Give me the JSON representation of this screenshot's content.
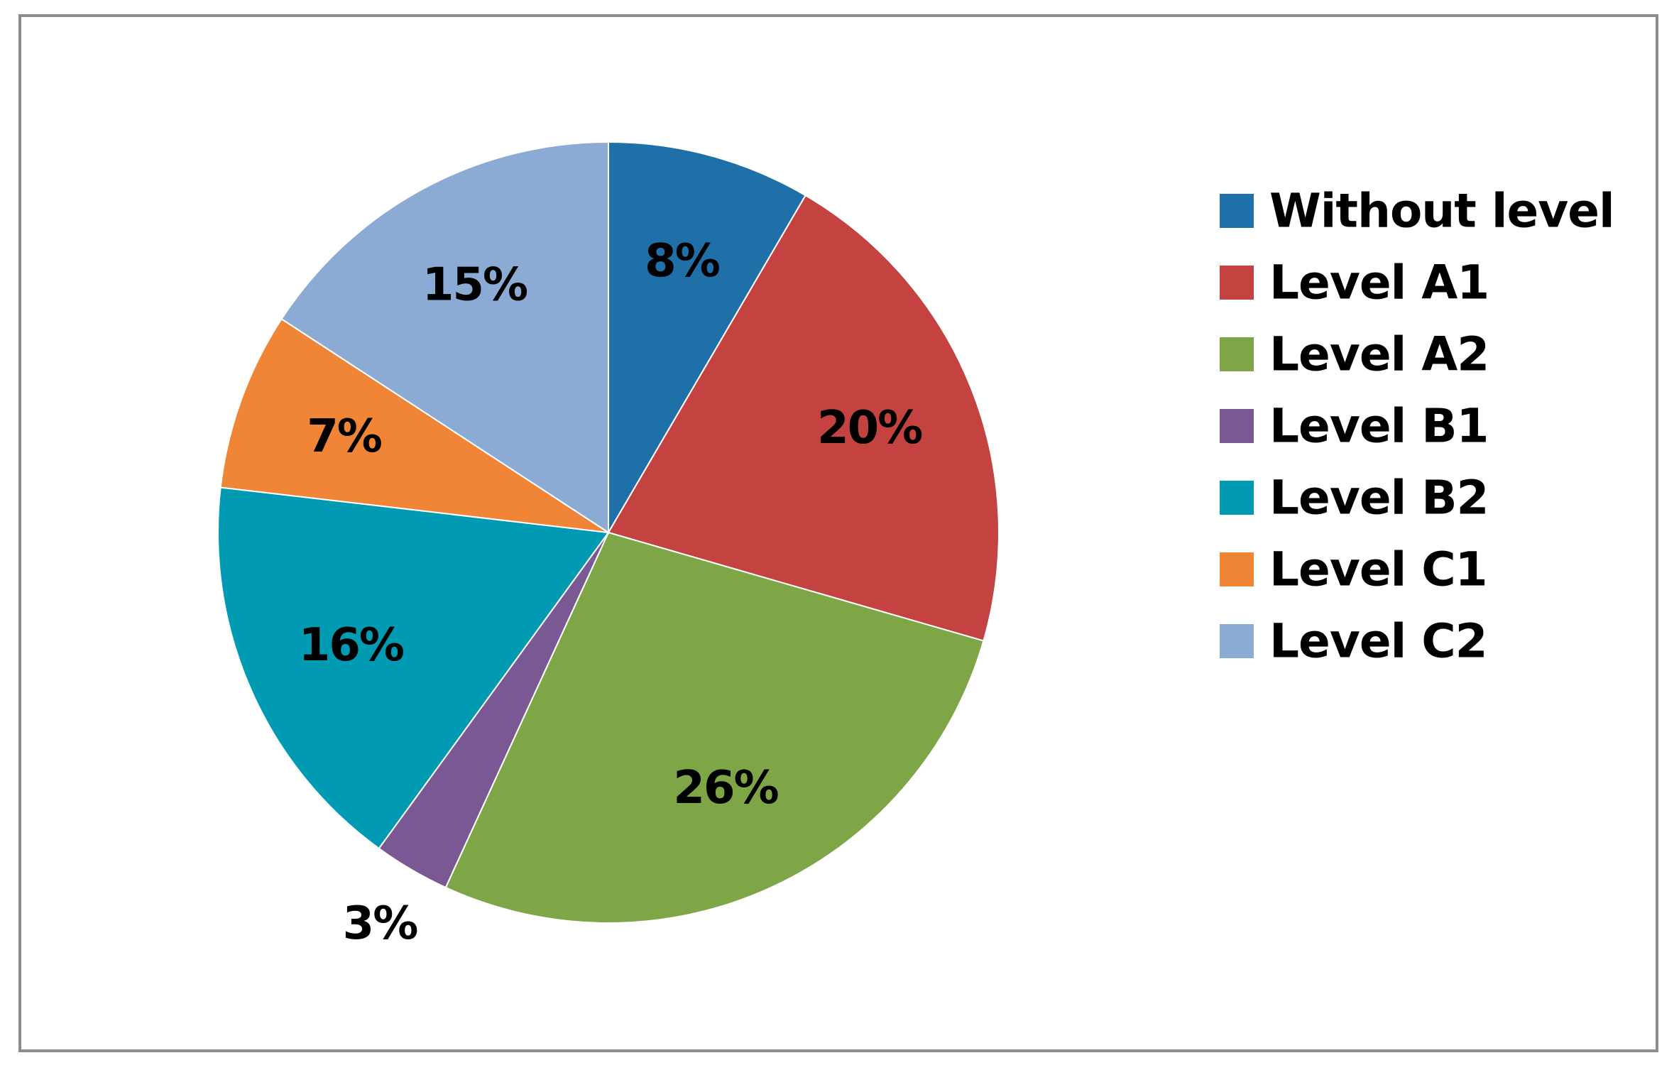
{
  "chart_data": {
    "type": "pie",
    "title": "",
    "legend_position": "right",
    "start_angle": "12 o'clock",
    "direction": "clockwise",
    "series": [
      {
        "name": "",
        "slices": [
          {
            "label": "Without level",
            "value": 8,
            "display": "8%",
            "color": "#1f6fa8"
          },
          {
            "label": "Level A1",
            "value": 20,
            "display": "20%",
            "color": "#c44341"
          },
          {
            "label": "Level A2",
            "value": 26,
            "display": "26%",
            "color": "#7ea646"
          },
          {
            "label": "Level B1",
            "value": 3,
            "display": "3%",
            "color": "#7a5893"
          },
          {
            "label": "Level B2",
            "value": 16,
            "display": "16%",
            "color": "#009bb3"
          },
          {
            "label": "Level C1",
            "value": 7,
            "display": "7%",
            "color": "#f08537"
          },
          {
            "label": "Level C2",
            "value": 15,
            "display": "15%",
            "color": "#8cabd4"
          }
        ]
      }
    ],
    "data_label_placement": {
      "Level B1": "outside"
    }
  }
}
